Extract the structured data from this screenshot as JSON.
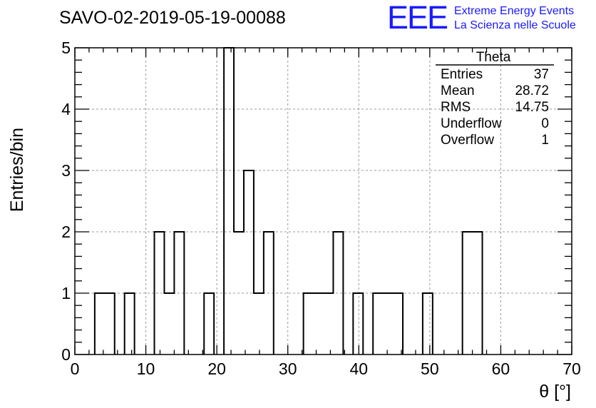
{
  "header": {
    "title": "SAVO-02-2019-05-19-00088",
    "logo_text": "EEE",
    "logo_line1": "Extreme Energy Events",
    "logo_line2": "La Scienza nelle Scuole",
    "logo_color": "#1a1aff"
  },
  "stats": {
    "title": "Theta",
    "rows": [
      {
        "label": "Entries",
        "value": "37"
      },
      {
        "label": "Mean",
        "value": "28.72"
      },
      {
        "label": "RMS",
        "value": "14.75"
      },
      {
        "label": "Underflow",
        "value": "0"
      },
      {
        "label": "Overflow",
        "value": "1"
      }
    ]
  },
  "chart_data": {
    "type": "histogram",
    "xlabel": "θ [°]",
    "ylabel": "Entries/bin",
    "xlim": [
      0,
      70
    ],
    "ylim": [
      0,
      5
    ],
    "bin_width": 1.4,
    "xticks": [
      0,
      10,
      20,
      30,
      40,
      50,
      60,
      70
    ],
    "yticks": [
      0,
      1,
      2,
      3,
      4,
      5
    ],
    "grid": true,
    "line_color": "#000000",
    "bins": [
      {
        "x": 2.8,
        "count": 1
      },
      {
        "x": 4.2,
        "count": 1
      },
      {
        "x": 7.0,
        "count": 1
      },
      {
        "x": 11.2,
        "count": 2
      },
      {
        "x": 12.6,
        "count": 1
      },
      {
        "x": 14.0,
        "count": 2
      },
      {
        "x": 18.2,
        "count": 1
      },
      {
        "x": 21.0,
        "count": 5
      },
      {
        "x": 22.4,
        "count": 2
      },
      {
        "x": 23.8,
        "count": 3
      },
      {
        "x": 25.2,
        "count": 1
      },
      {
        "x": 26.6,
        "count": 2
      },
      {
        "x": 32.2,
        "count": 1
      },
      {
        "x": 33.6,
        "count": 1
      },
      {
        "x": 35.0,
        "count": 1
      },
      {
        "x": 36.4,
        "count": 2
      },
      {
        "x": 39.2,
        "count": 1
      },
      {
        "x": 42.0,
        "count": 1
      },
      {
        "x": 43.4,
        "count": 1
      },
      {
        "x": 44.8,
        "count": 1
      },
      {
        "x": 49.0,
        "count": 1
      },
      {
        "x": 54.6,
        "count": 2
      },
      {
        "x": 56.0,
        "count": 2
      }
    ]
  }
}
